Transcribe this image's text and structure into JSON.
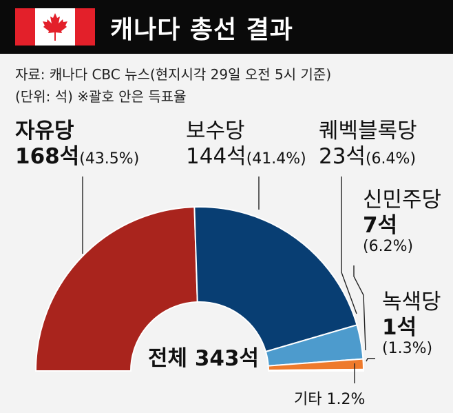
{
  "header": {
    "title": "캐나다 총선 결과",
    "flag": {
      "red": "#e3202a",
      "white": "#ffffff"
    }
  },
  "notes": {
    "source": "자료: 캐나다 CBC 뉴스(현지시각 29일 오전 5시 기준)",
    "unit": "(단위: 석)  ※괄호 안은 득표율"
  },
  "chart_data": {
    "type": "pie",
    "subtype": "semi-donut",
    "total_label": "전체 343석",
    "total_seats": 343,
    "slices": [
      {
        "party": "자유당",
        "seats_label": "168석",
        "pct_label": "(43.5%)",
        "seats": 168,
        "color": "#a9241d"
      },
      {
        "party": "보수당",
        "seats_label": "144석",
        "pct_label": "(41.4%)",
        "seats": 144,
        "color": "#083e73"
      },
      {
        "party": "퀘벡블록당",
        "seats_label": "23석",
        "pct_label": "(6.4%)",
        "seats": 23,
        "color": "#4d9bcd"
      },
      {
        "party": "신민주당",
        "seats_label": "7석",
        "pct_label": "(6.2%)",
        "seats": 7,
        "color": "#ee7a2c"
      },
      {
        "party": "녹색당",
        "seats_label": "1석",
        "pct_label": "(1.3%)",
        "seats": 1,
        "color": "#4aa53a"
      }
    ],
    "other": {
      "label": "기타 1.2%",
      "color": "#b9b9b9"
    }
  }
}
